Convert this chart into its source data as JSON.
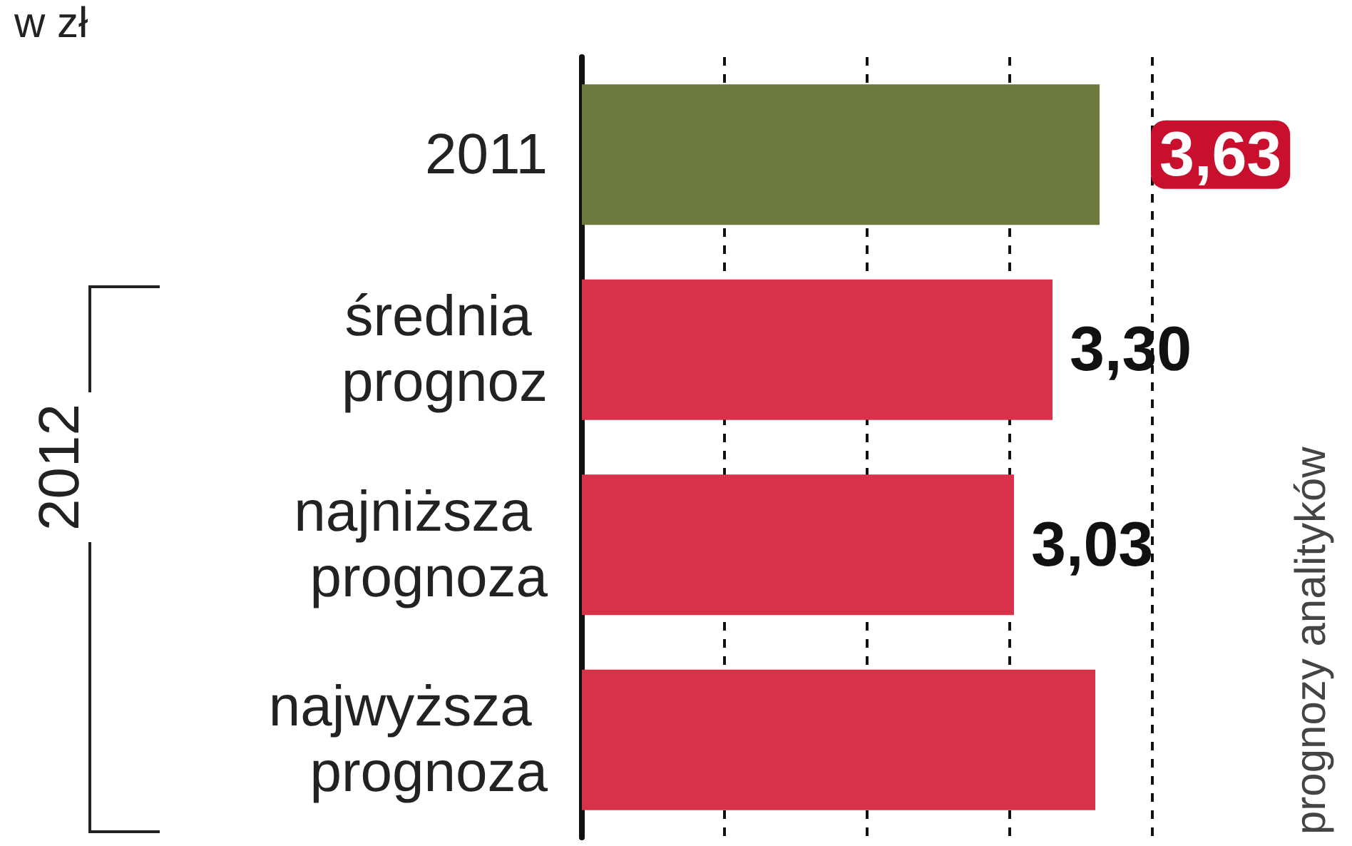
{
  "chart_data": {
    "type": "bar",
    "orientation": "horizontal",
    "categories": [
      "2011",
      "średnia prognoz",
      "najniższa prognoza",
      "najwyższa prognoza"
    ],
    "values": [
      3.63,
      3.3,
      3.03,
      3.6
    ],
    "colors": [
      "#6b7a3c",
      "#d8324a",
      "#d8324a",
      "#d8324a"
    ],
    "value_labels": [
      "3,63",
      "3,30",
      "3,03",
      null
    ],
    "xlim": [
      0,
      4
    ],
    "xticks": [
      {
        "value": 1,
        "label": null
      },
      {
        "value": 2,
        "label": null
      },
      {
        "value": 3,
        "label": null
      },
      {
        "value": 4,
        "label": null
      }
    ],
    "tick_labels": "y",
    "grid": "x",
    "annotations": [
      "w zł",
      "2012",
      "prognozy analityków"
    ]
  }
}
